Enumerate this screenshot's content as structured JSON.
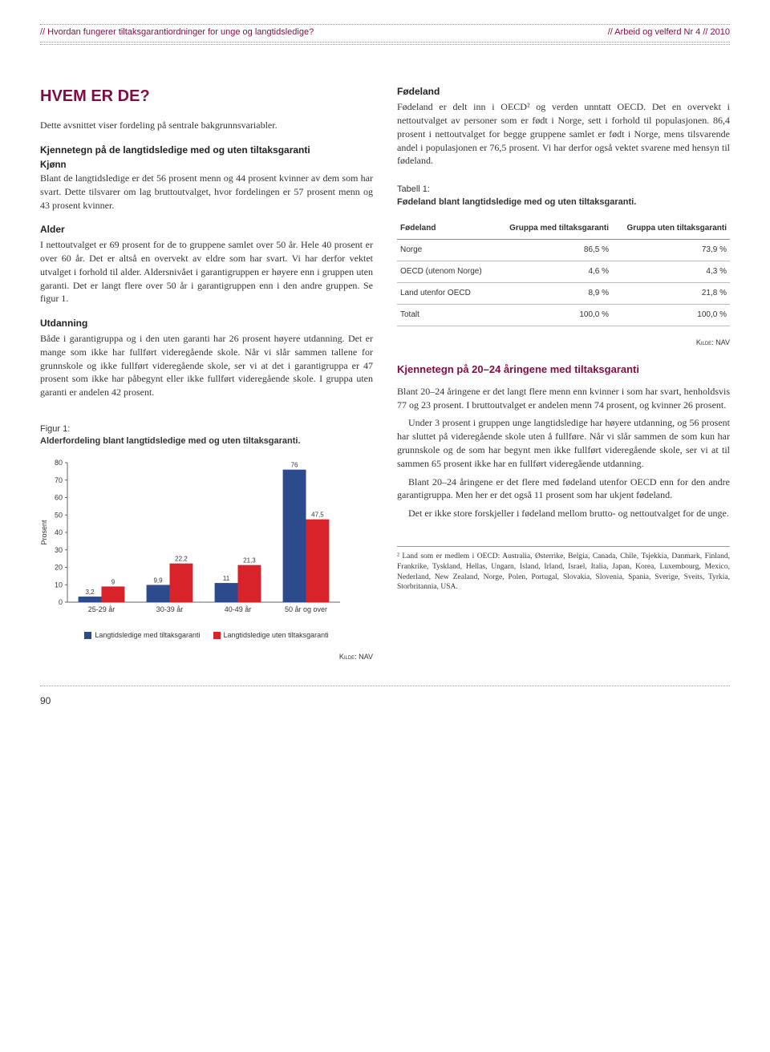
{
  "header": {
    "left": "// Hvordan fungerer tiltaksgarantiordninger for unge og langtidsledige?",
    "right": "// Arbeid og velferd Nr 4 // 2010"
  },
  "page_number": "90",
  "title": "HVEM ER DE?",
  "intro": "Dette avsnittet viser fordeling på sentrale bakgrunns­variabler.",
  "kjennetegn_head": "Kjennetegn på de langtidsledige med og uten tiltaksgaranti",
  "kjonn_head": "Kjønn",
  "kjonn_text": "Blant de langtidsledige er det 56 prosent menn og 44 prosent kvinner av dem som har svart. Dette tilsvarer om lag bruttoutvalget, hvor fordelingen er 57 prosent menn og 43 prosent kvinner.",
  "alder_head": "Alder",
  "alder_text": "I nettoutvalget er 69 prosent for de to gruppene samlet over 50 år. Hele 40 prosent er over 60 år. Det er altså en overvekt av eldre som har svart. Vi har derfor vektet utvalget i forhold til alder. Aldersnivået i garantigruppen er høyere enn i gruppen uten garanti. Det er langt flere over 50 år i garantigruppen enn i den andre gruppen. Se figur 1.",
  "utdanning_head": "Utdanning",
  "utdanning_text": "Både i garantigruppa og i den uten garanti har 26 prosent høyere utdanning. Det er mange som ikke har fullført videregående skole. Når vi slår sammen tallene for grunnskole og ikke fullført videregående skole, ser vi at det i garanti­gruppa er 47 prosent som ikke har påbegynt eller ikke fullført videregående skole. I gruppa uten garanti er andelen 42 prosent.",
  "fodeland_head": "Fødeland",
  "fodeland_text": "Fødeland er delt inn i OECD² og verden unntatt OECD. Det en overvekt i nettoutvalget av personer som er født i Norge, sett i forhold til populasjonen. 86,4 prosent i net­toutvalget for begge gruppene samlet er født i Norge, mens tilsvarende andel i populasjonen er 76,5 prosent. Vi har derfor også vektet svarene med hensyn til fødeland.",
  "tabell_label": "Tabell 1:",
  "tabell_title": "Fødeland blant langtidsledige med og uten tiltaks­garanti.",
  "table": {
    "columns": [
      "Fødeland",
      "Gruppa med tiltaksgaranti",
      "Gruppa uten tiltaksgaranti"
    ],
    "rows": [
      [
        "Norge",
        "86,5 %",
        "73,9 %"
      ],
      [
        "OECD (utenom Norge)",
        "4,6 %",
        "4,3 %"
      ],
      [
        "Land utenfor OECD",
        "8,9 %",
        "21,8 %"
      ],
      [
        "Totalt",
        "100,0 %",
        "100,0 %"
      ]
    ]
  },
  "table_source": "Kilde: NAV",
  "kjennetegn2_head": "Kjennetegn på 20–24 åringene med tiltaks­garanti",
  "kjennetegn2_p1": "Blant 20–24 åringene er det langt flere menn enn kvinner i som har svart, henholdsvis 77 og 23 prosent. I bruttoutval­get er andelen menn 74 prosent, og kvinner 26 prosent.",
  "kjennetegn2_p2": "Under 3 prosent i gruppen unge langtidsledige har høyere utdanning, og 56 prosent har sluttet på videregående skole uten å fullføre. Når vi slår sammen de som kun har grunnskole og de som har begynt men ikke fullført videregående skole, ser vi at til sammen 65 prosent ikke har en fullført videregående utdanning.",
  "kjennetegn2_p3": "Blant 20–24 åringene er det flere med fødeland utenfor OECD enn for den andre garantigruppa. Men her er det også 11 prosent som har ukjent fødeland.",
  "kjennetegn2_p4": "Det er ikke store forskjeller i fødeland mellom brutto- og nettoutvalget for de unge.",
  "figur": {
    "label": "Figur 1:",
    "title": "Alderfordeling blant langtidsledige med og uten tiltaksgaranti.",
    "source": "Kilde: NAV",
    "type": "bar",
    "ylabel": "Prosent",
    "ylim": [
      0,
      80
    ],
    "ytick_step": 10,
    "categories": [
      "25-29 år",
      "30-39 år",
      "40-49 år",
      "50 år og over"
    ],
    "series": [
      {
        "name": "Langtidsledige med tiltaksgaranti",
        "color": "#2c4a8c",
        "values": [
          3.2,
          9.9,
          11,
          76
        ]
      },
      {
        "name": "Langtidsledige uten tiltaksgaranti",
        "color": "#d8232a",
        "values": [
          9,
          22.2,
          21.3,
          47.5
        ]
      }
    ],
    "bar_width": 0.34,
    "background_color": "#ffffff",
    "axis_color": "#666",
    "label_fontsize": 9
  },
  "footnote": "²  Land som er medlem i OECD: Australia, Østerrike, Belgia, Canada, Chile, Tsjekkia, Danmark, Finland, Frankrike, Tyskland, Hellas, Ungarn, Island, Irland, Israel, Italia, Japan, Korea, Luxembourg, Mexico, Nederland, New Zealand, Norge, Polen, Portugal, Slovakia, Slovenia, Spania, Sverige, Sveits, Tyrkia, Storbritannia, USA."
}
